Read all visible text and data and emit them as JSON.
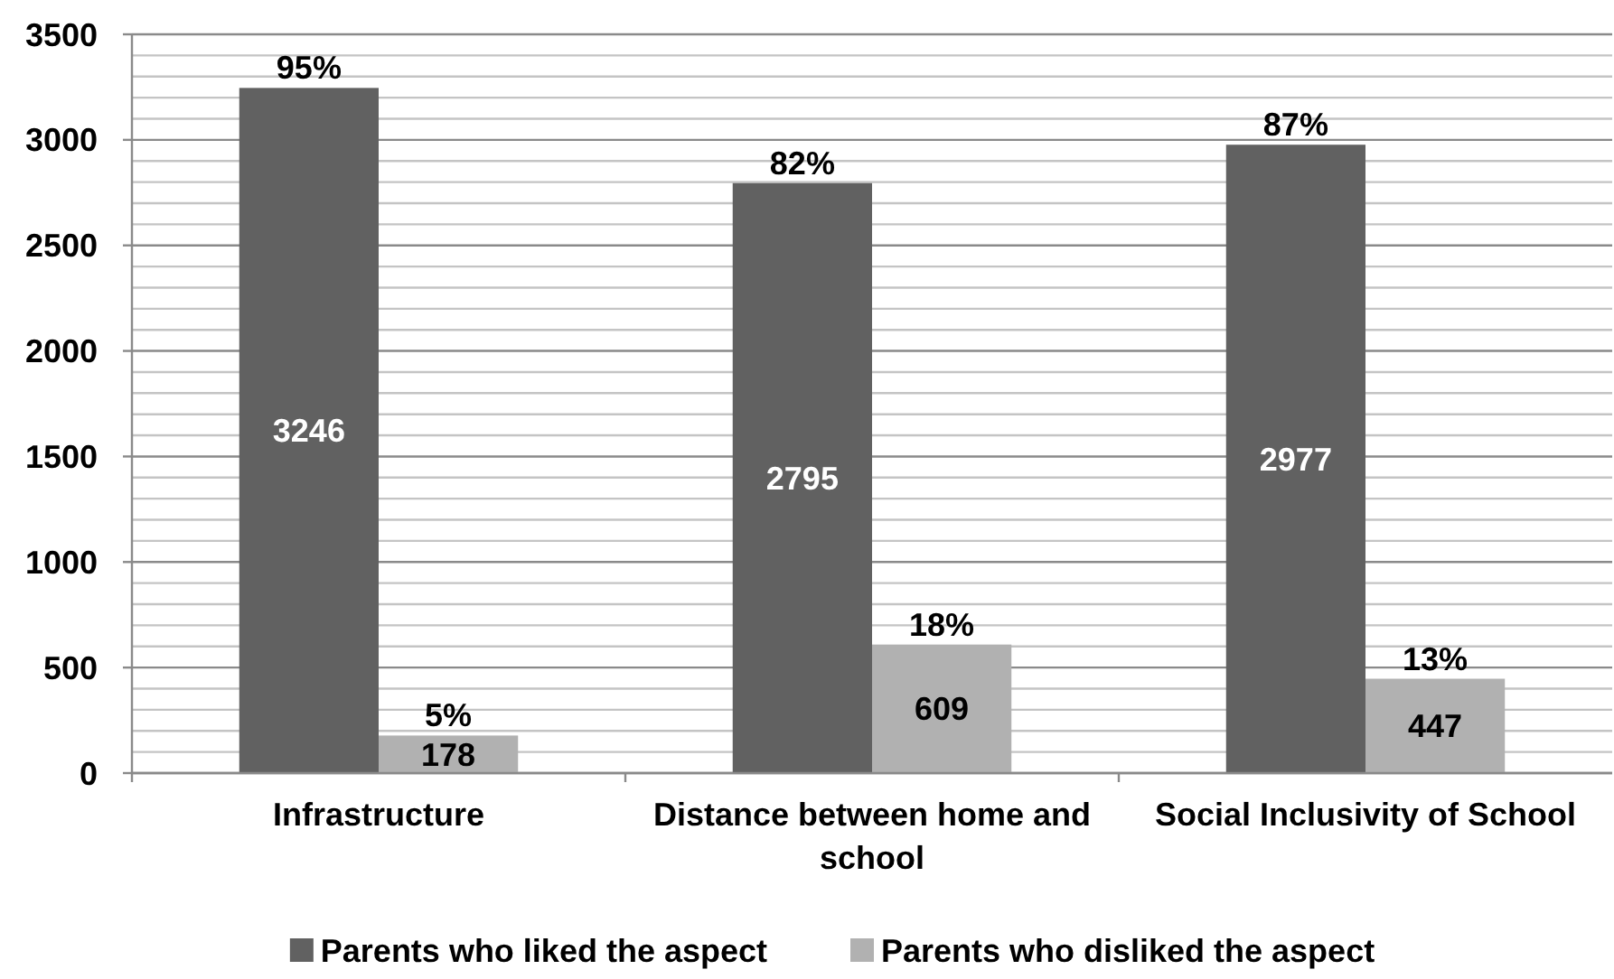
{
  "chart_data": {
    "type": "bar",
    "categories": [
      "Infrastructure",
      "Distance between home and school",
      "Social Inclusivity of School"
    ],
    "series": [
      {
        "name": "Parents who liked the aspect",
        "color": "#616161",
        "values": [
          3246,
          2795,
          2977
        ]
      },
      {
        "name": "Parents who disliked the aspect",
        "color": "#b1b1b1",
        "values": [
          178,
          609,
          447
        ]
      }
    ],
    "ylim": [
      0,
      3500
    ],
    "yticks": [
      0,
      {
        "value": 100,
        "label": null
      },
      {
        "value": 200,
        "label": null
      },
      {
        "value": 300,
        "label": null
      },
      {
        "value": 400,
        "label": null
      },
      500,
      {
        "value": 600,
        "label": null
      },
      {
        "value": 700,
        "label": null
      },
      {
        "value": 800,
        "label": null
      },
      {
        "value": 900,
        "label": null
      },
      1000,
      {
        "value": 1100,
        "label": null
      },
      {
        "value": 1200,
        "label": null
      },
      {
        "value": 1300,
        "label": null
      },
      {
        "value": 1400,
        "label": null
      },
      1500,
      {
        "value": 1600,
        "label": null
      },
      {
        "value": 1700,
        "label": null
      },
      {
        "value": 1800,
        "label": null
      },
      {
        "value": 1900,
        "label": null
      },
      2000,
      {
        "value": 2100,
        "label": null
      },
      {
        "value": 2200,
        "label": null
      },
      {
        "value": 2300,
        "label": null
      },
      {
        "value": 2400,
        "label": null
      },
      2500,
      {
        "value": 2600,
        "label": null
      },
      {
        "value": 2700,
        "label": null
      },
      {
        "value": 2800,
        "label": null
      },
      {
        "value": 2900,
        "label": null
      },
      3000,
      {
        "value": 3100,
        "label": null
      },
      {
        "value": 3200,
        "label": null
      },
      {
        "value": 3300,
        "label": null
      },
      {
        "value": 3400,
        "label": null
      },
      3500
    ],
    "annotations": [
      {
        "text": "95%",
        "x": "Infrastructure",
        "y": 3246
      },
      {
        "text": "5%",
        "x": "Infrastructure",
        "y": 178
      },
      {
        "text": "82%",
        "x": "Distance between home and school",
        "y": 2795
      },
      {
        "text": "18%",
        "x": "Distance between home and school",
        "y": 609
      },
      {
        "text": "87%",
        "x": "Social Inclusivity of School",
        "y": 2977
      },
      {
        "text": "13%",
        "x": "Social Inclusivity of School",
        "y": 447
      }
    ],
    "grid": true,
    "data_labels": true,
    "legend": "bottom"
  }
}
